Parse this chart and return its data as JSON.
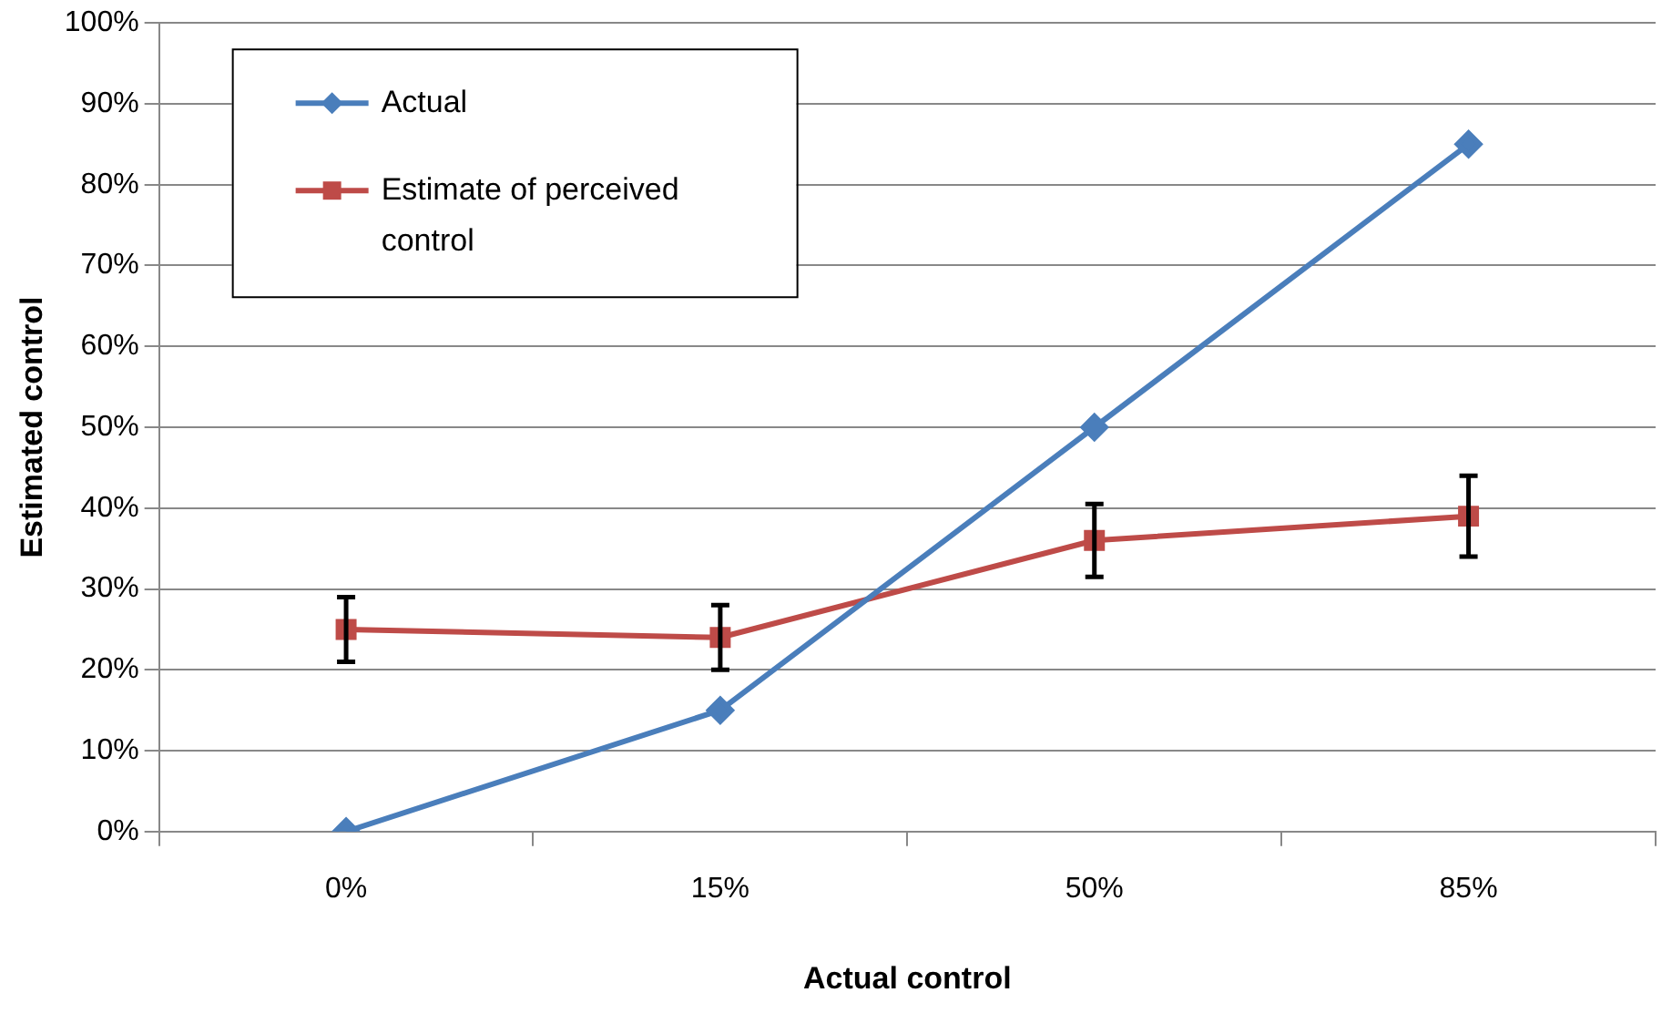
{
  "chart_data": {
    "type": "line",
    "xlabel": "Actual control",
    "ylabel": "Estimated control",
    "categories": [
      "0%",
      "15%",
      "50%",
      "85%"
    ],
    "series": [
      {
        "name": "Actual",
        "color": "#4a7ebb",
        "values": [
          0,
          15,
          50,
          85
        ],
        "marker": "diamond"
      },
      {
        "name": "Estimate of perceived control",
        "color": "#be4b48",
        "values": [
          25,
          24,
          36,
          39
        ],
        "marker": "square",
        "errors": [
          4,
          4,
          4.5,
          5
        ]
      }
    ],
    "ylim": [
      0,
      100
    ],
    "yticks": [
      {
        "value": 0,
        "label": "0%"
      },
      {
        "value": 10,
        "label": "10%"
      },
      {
        "value": 20,
        "label": "20%"
      },
      {
        "value": 30,
        "label": "30%"
      },
      {
        "value": 40,
        "label": "40%"
      },
      {
        "value": 50,
        "label": "50%"
      },
      {
        "value": 60,
        "label": "60%"
      },
      {
        "value": 70,
        "label": "70%"
      },
      {
        "value": 80,
        "label": "80%"
      },
      {
        "value": 90,
        "label": "90%"
      },
      {
        "value": 100,
        "label": "100%"
      }
    ],
    "grid": "y",
    "legend": "top left",
    "line_style": "solid"
  }
}
